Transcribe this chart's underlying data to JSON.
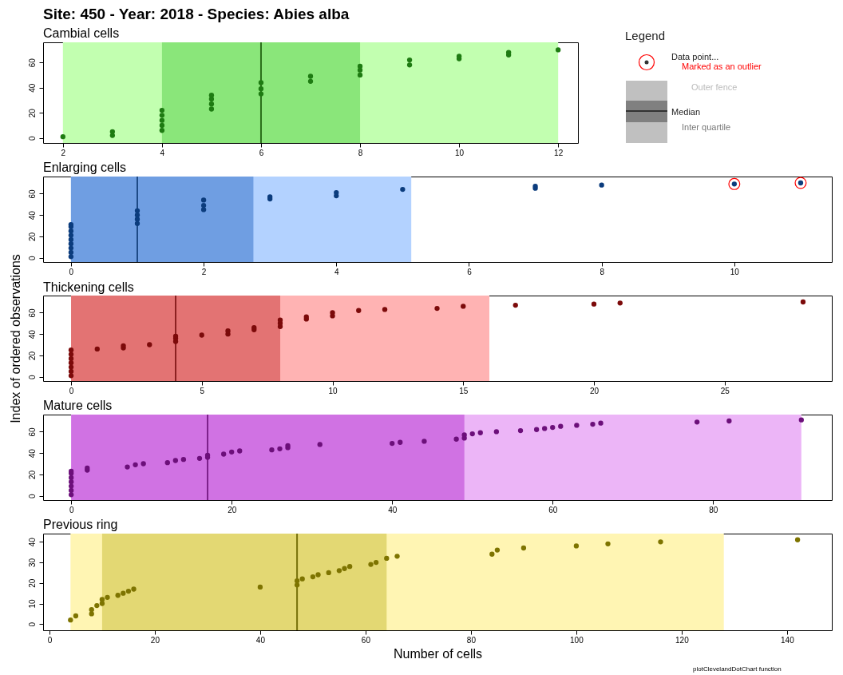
{
  "chart_data": [
    {
      "type": "scatter",
      "title": "Site: 450 - Year: 2018 - Species: Abies alba",
      "subtitle": "Cambial cells",
      "marker": "circle",
      "xlim": [
        1.6,
        12.4
      ],
      "xticks": [
        2,
        4,
        6,
        8,
        10,
        12
      ],
      "ylim": [
        -4,
        76
      ],
      "yticks": [
        0,
        20,
        40,
        60
      ],
      "bands": [
        {
          "axis": "x",
          "from": 2,
          "to": 12,
          "color": "#c2ffb0"
        },
        {
          "axis": "x",
          "from": 4,
          "to": 8,
          "color": "#8ae67a"
        }
      ],
      "ref_lines": [
        {
          "axis": "x",
          "value": 6,
          "color": "#2a6e1a"
        }
      ],
      "series": [
        {
          "color": "#1e7b12",
          "x": [
            2,
            3,
            3,
            4,
            4,
            4,
            4,
            4,
            5,
            5,
            5,
            5,
            6,
            6,
            6,
            7,
            7,
            8,
            8,
            8,
            9,
            9,
            10,
            10,
            11,
            11,
            12
          ],
          "values": [
            1,
            2,
            5,
            6,
            10,
            14,
            18,
            22,
            23,
            27,
            31,
            34,
            35,
            39,
            44,
            45,
            49,
            50,
            54,
            57,
            58,
            62,
            63,
            65,
            66,
            68,
            70
          ]
        }
      ]
    },
    {
      "type": "scatter",
      "title": "Enlarging cells",
      "marker": "circle",
      "xlim": [
        -0.42,
        11.47
      ],
      "xticks": [
        0,
        2,
        4,
        6,
        8,
        10
      ],
      "ylim": [
        -4,
        76
      ],
      "yticks": [
        0,
        20,
        40,
        60
      ],
      "bands": [
        {
          "axis": "x",
          "from": 0,
          "to": 5.13,
          "color": "#b3d2ff"
        },
        {
          "axis": "x",
          "from": 0,
          "to": 2.75,
          "color": "#6f9ee2"
        }
      ],
      "ref_lines": [
        {
          "axis": "x",
          "value": 1,
          "color": "#1d4a86"
        }
      ],
      "series": [
        {
          "color": "#0b3c7d",
          "x": [
            0,
            0,
            0,
            0,
            0,
            0,
            0,
            0,
            0,
            1,
            1,
            1,
            1,
            2,
            2,
            2,
            3,
            3,
            4,
            4,
            5,
            7,
            7,
            8,
            10,
            11
          ],
          "values": [
            1,
            5,
            9,
            13,
            17,
            21,
            25,
            29,
            31,
            32,
            36,
            40,
            44,
            45,
            49,
            54,
            55,
            57,
            58,
            61,
            64,
            65,
            67,
            68,
            69,
            70
          ]
        },
        {
          "color": "#ff0000",
          "x": [
            10,
            11
          ],
          "values": [
            69,
            70
          ]
        }
      ]
    },
    {
      "type": "scatter",
      "title": "Thickening cells",
      "ylabel": "Index of ordered observations",
      "marker": "circle",
      "xlim": [
        -1.07,
        29.1
      ],
      "xticks": [
        0,
        5,
        10,
        15,
        20,
        25
      ],
      "ylim": [
        -4,
        76
      ],
      "yticks": [
        0,
        20,
        40,
        60
      ],
      "bands": [
        {
          "axis": "x",
          "from": 0,
          "to": 16,
          "color": "#ffb3b3"
        },
        {
          "axis": "x",
          "from": 0,
          "to": 8,
          "color": "#e37373"
        }
      ],
      "ref_lines": [
        {
          "axis": "x",
          "value": 4,
          "color": "#8a1f1f"
        }
      ],
      "series": [
        {
          "color": "#7c0a0a",
          "x": [
            0,
            0,
            0,
            0,
            0,
            0,
            0,
            1,
            2,
            2,
            3,
            4,
            4,
            4,
            5,
            6,
            6,
            7,
            7,
            8,
            8,
            8,
            9,
            9,
            10,
            10,
            11,
            12,
            14,
            15,
            17,
            20,
            21,
            28
          ],
          "values": [
            1,
            5,
            9,
            13,
            17,
            21,
            25,
            26,
            27,
            29,
            30,
            33,
            36,
            38,
            39,
            40,
            43,
            44,
            46,
            47,
            50,
            53,
            54,
            56,
            57,
            60,
            62,
            63,
            64,
            66,
            67,
            68,
            69,
            70
          ]
        }
      ]
    },
    {
      "type": "scatter",
      "title": "Mature cells",
      "marker": "circle",
      "xlim": [
        -3.5,
        94.8
      ],
      "xticks": [
        0,
        20,
        40,
        60,
        80
      ],
      "ylim": [
        -4,
        76
      ],
      "yticks": [
        0,
        20,
        40,
        60
      ],
      "bands": [
        {
          "axis": "x",
          "from": 0,
          "to": 91,
          "color": "#ecb5f7"
        },
        {
          "axis": "x",
          "from": 0,
          "to": 49,
          "color": "#d072e3"
        }
      ],
      "ref_lines": [
        {
          "axis": "x",
          "value": 17,
          "color": "#7b1f8a"
        }
      ],
      "series": [
        {
          "color": "#6c0f7a",
          "x": [
            0,
            0,
            0,
            0,
            0,
            0,
            0,
            2,
            2,
            7,
            8,
            9,
            12,
            13,
            14,
            16,
            17,
            17,
            19,
            20,
            21,
            25,
            26,
            27,
            27,
            31,
            40,
            41,
            44,
            48,
            49,
            49,
            50,
            51,
            53,
            56,
            58,
            59,
            60,
            61,
            63,
            65,
            66,
            78,
            82,
            91
          ],
          "values": [
            1,
            5,
            9,
            13,
            17,
            21,
            23,
            24,
            26,
            27,
            29,
            30,
            31,
            33,
            34,
            35,
            36,
            38,
            39,
            41,
            42,
            43,
            44,
            45,
            47,
            48,
            49,
            50,
            51,
            53,
            54,
            57,
            58,
            59,
            60,
            61,
            62,
            63,
            64,
            65,
            66,
            67,
            68,
            69,
            70,
            71
          ]
        }
      ]
    },
    {
      "type": "scatter",
      "title": "Previous ring",
      "xlabel": "Number of cells",
      "marker": "circle",
      "xlim": [
        -1.2,
        148.5
      ],
      "xticks": [
        0,
        20,
        40,
        60,
        80,
        100,
        120,
        140
      ],
      "ylim": [
        -3,
        44
      ],
      "yticks": [
        0,
        10,
        20,
        30,
        40
      ],
      "annotations": [
        "plotClevelandDotChart function"
      ],
      "bands": [
        {
          "axis": "x",
          "from": 4,
          "to": 128,
          "color": "#fff5b3"
        },
        {
          "axis": "x",
          "from": 10,
          "to": 64,
          "color": "#e3d873"
        }
      ],
      "ref_lines": [
        {
          "axis": "x",
          "value": 47,
          "color": "#77700a"
        }
      ],
      "series": [
        {
          "color": "#7e7400",
          "x": [
            4,
            5,
            8,
            8,
            9,
            10,
            10,
            11,
            13,
            14,
            15,
            16,
            40,
            47,
            47,
            48,
            50,
            51,
            53,
            55,
            56,
            57,
            61,
            62,
            64,
            66,
            84,
            85,
            90,
            100,
            106,
            116,
            142
          ],
          "values": [
            2,
            4,
            5,
            7,
            9,
            10,
            12,
            13,
            14,
            15,
            16,
            17,
            18,
            19,
            21,
            22,
            23,
            24,
            25,
            26,
            27,
            28,
            29,
            30,
            32,
            33,
            34,
            36,
            37,
            38,
            39,
            40,
            41
          ]
        }
      ]
    },
    {
      "type": "other",
      "title": "Legend",
      "annotations": [
        "Data point...",
        "Marked as an outlier",
        "Outer fence",
        "Median",
        "Inter quartile"
      ]
    }
  ]
}
